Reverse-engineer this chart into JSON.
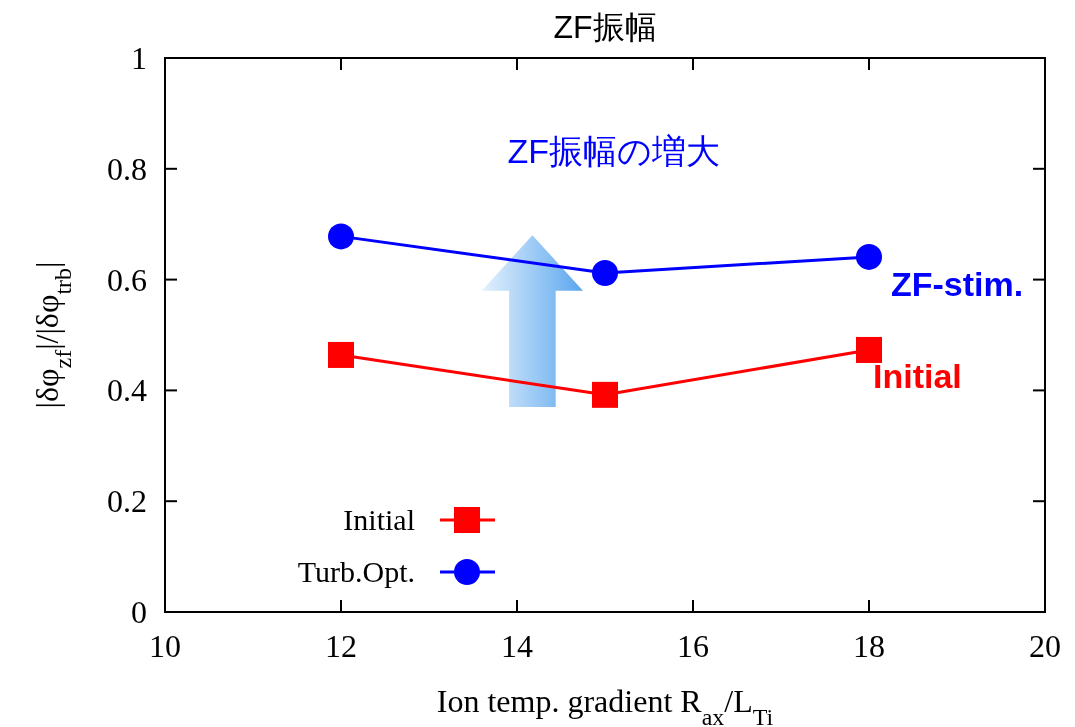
{
  "chart_data": {
    "type": "line",
    "title": "ZF振幅",
    "xlabel": "Ion temp. gradient R$_{ax}$/L$_{Ti}$",
    "ylabel": "|δφ$_{zf}$|/|δφ$_{trb}$|",
    "x": [
      12,
      15,
      18
    ],
    "series": [
      {
        "name": "Initial",
        "color": "#ff0000",
        "marker": "square",
        "values": [
          0.464,
          0.392,
          0.473
        ]
      },
      {
        "name": "Turb.Opt.",
        "color": "#0000ff",
        "marker": "circle",
        "values": [
          0.678,
          0.612,
          0.641
        ]
      }
    ],
    "xlim": [
      10,
      20
    ],
    "xticks": [
      10,
      12,
      14,
      16,
      18,
      20
    ],
    "ylim": [
      0,
      1
    ],
    "yticks": [
      0,
      0.2,
      0.4,
      0.6,
      0.8,
      1
    ],
    "grid": false,
    "legend": "bottom left",
    "annotations": [
      "ZF振幅の増大",
      "ZF-stim.",
      "Initial"
    ]
  }
}
